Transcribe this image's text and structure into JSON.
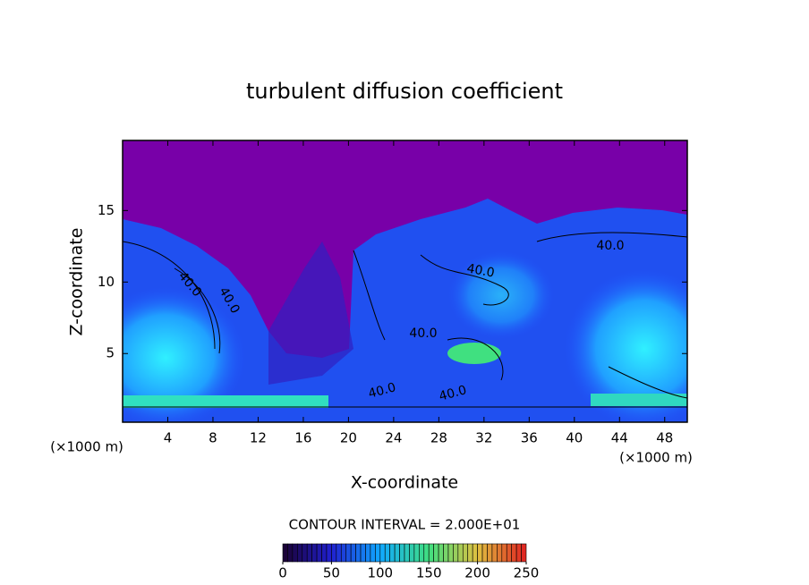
{
  "chart_data": {
    "type": "contour",
    "title": "turbulent diffusion coefficient",
    "xlabel": "X-coordinate",
    "ylabel": "Z-coordinate",
    "x_unit": "(×1000 m)",
    "x_unit_right": "(×1000 m)",
    "xlim": [
      0,
      50
    ],
    "ylim": [
      0.2,
      19.9
    ],
    "xticks": [
      4,
      8,
      12,
      16,
      20,
      24,
      28,
      32,
      36,
      40,
      44,
      48
    ],
    "yticks": [
      5,
      10,
      15
    ],
    "contour_interval": "CONTOUR INTERVAL = 2.000E+01",
    "contour_labels": [
      "40.0",
      "40.0",
      "40.0",
      "40.0",
      "40.0",
      "40.0",
      "40.0"
    ],
    "colorbar": {
      "lim": [
        0,
        250
      ],
      "ticks": [
        0,
        50,
        100,
        150,
        200,
        250
      ],
      "colormap": [
        "#1a0030",
        "#2020d0",
        "#10a8ff",
        "#40e080",
        "#e0c040",
        "#e02020"
      ]
    }
  }
}
